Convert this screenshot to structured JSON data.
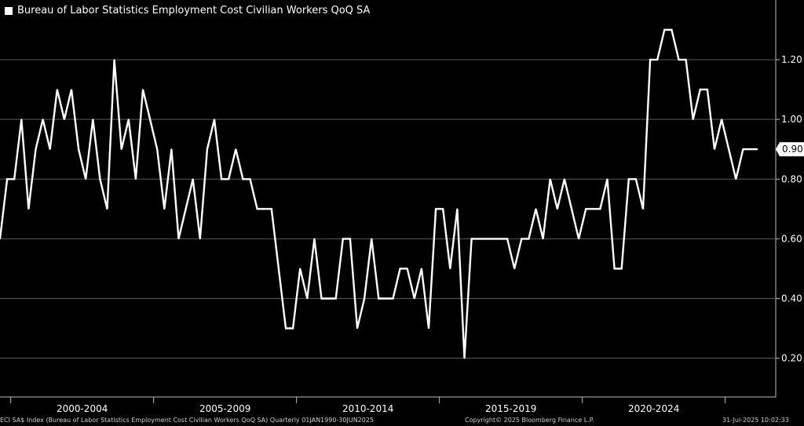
{
  "chart_data": {
    "type": "line",
    "title": "Bureau of Labor Statistics Employment Cost Civilian Workers QoQ SA",
    "series": [
      {
        "name": "Bureau of Labor Statistics Employment Cost Civilian Workers QoQ SA",
        "values": [
          0.6,
          0.8,
          0.8,
          1.0,
          0.7,
          0.9,
          1.0,
          0.9,
          1.1,
          1.0,
          1.1,
          0.9,
          0.8,
          1.0,
          0.8,
          0.7,
          1.2,
          0.9,
          1.0,
          0.8,
          1.1,
          1.0,
          0.9,
          0.7,
          0.9,
          0.6,
          0.7,
          0.8,
          0.6,
          0.9,
          1.0,
          0.8,
          0.8,
          0.9,
          0.8,
          0.8,
          0.7,
          0.7,
          0.7,
          0.5,
          0.3,
          0.3,
          0.5,
          0.4,
          0.6,
          0.4,
          0.4,
          0.4,
          0.6,
          0.6,
          0.3,
          0.4,
          0.6,
          0.4,
          0.4,
          0.4,
          0.5,
          0.5,
          0.4,
          0.5,
          0.3,
          0.7,
          0.7,
          0.5,
          0.7,
          0.2,
          0.6,
          0.6,
          0.6,
          0.6,
          0.6,
          0.6,
          0.5,
          0.6,
          0.6,
          0.7,
          0.6,
          0.8,
          0.7,
          0.8,
          0.7,
          0.6,
          0.7,
          0.7,
          0.7,
          0.8,
          0.5,
          0.5,
          0.8,
          0.8,
          0.7,
          1.2,
          1.2,
          1.3,
          1.3,
          1.2,
          1.2,
          1.0,
          1.1,
          1.1,
          0.9,
          1.0,
          0.9,
          0.8,
          0.9,
          0.9,
          0.9
        ]
      }
    ],
    "last_value_label": "0.90",
    "y_axis": {
      "position": "right",
      "ticks": [
        "0.20",
        "0.40",
        "0.60",
        "0.80",
        "1.00",
        "1.20"
      ],
      "ylim": [
        0.07,
        1.4
      ]
    },
    "x_axis": {
      "ticks": [
        "2000-2004",
        "2005-2009",
        "2010-2014",
        "2015-2019",
        "2020-2024"
      ]
    },
    "grid": true,
    "legend": "top-left"
  },
  "footer": {
    "left": "ECI SA$ Index (Bureau of Labor Statistics Employment Cost Civilian Workers QoQ SA)  Quarterly 01JAN1990-30JUN2025",
    "center": "Copyright© 2025 Bloomberg Finance L.P.",
    "right": "31-Jul-2025 10:02:33"
  },
  "colors": {
    "background": "#000000",
    "line": "#ffffff",
    "grid": "#5a5a5a"
  }
}
